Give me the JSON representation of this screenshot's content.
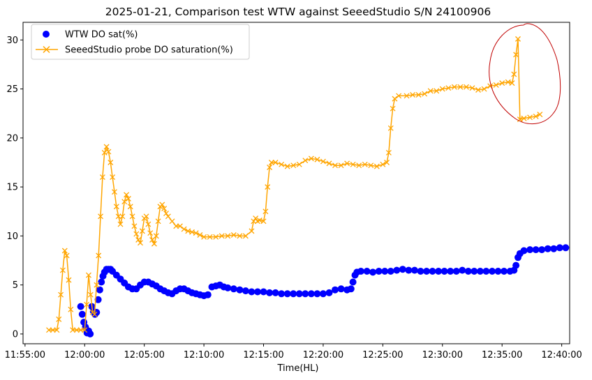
{
  "chart_data": {
    "type": "line",
    "title": "2025-01-21, Comparison test WTW against SeeedStudio S/N 24100906",
    "xlabel": "Time(HL)",
    "ylabel": "",
    "xlim": [
      "11:54:50",
      "12:40:40"
    ],
    "ylim": [
      -1.0,
      31.8
    ],
    "x_ticks": [
      "11:55:00",
      "12:00:00",
      "12:05:00",
      "12:10:00",
      "12:15:00",
      "12:20:00",
      "12:25:00",
      "12:30:00",
      "12:35:00",
      "12:40:00"
    ],
    "y_ticks": [
      0,
      5,
      10,
      15,
      20,
      25,
      30
    ],
    "grid": false,
    "legend_position": "top-left",
    "series": [
      {
        "name": "WTW DO sat(%)",
        "marker": "circle",
        "color": "#0000ff",
        "points": [
          [
            "11:59:40",
            2.8
          ],
          [
            "11:59:48",
            2.0
          ],
          [
            "11:59:56",
            1.2
          ],
          [
            "12:00:04",
            0.7
          ],
          [
            "12:00:12",
            0.1
          ],
          [
            "12:00:20",
            0.3
          ],
          [
            "12:00:28",
            0.0
          ],
          [
            "12:00:36",
            2.8
          ],
          [
            "12:00:44",
            2.3
          ],
          [
            "12:00:52",
            2.0
          ],
          [
            "12:01:00",
            2.2
          ],
          [
            "12:01:08",
            3.5
          ],
          [
            "12:01:16",
            4.5
          ],
          [
            "12:01:24",
            5.3
          ],
          [
            "12:01:32",
            5.9
          ],
          [
            "12:01:40",
            6.3
          ],
          [
            "12:01:50",
            6.6
          ],
          [
            "12:02:00",
            6.6
          ],
          [
            "12:02:10",
            6.6
          ],
          [
            "12:02:20",
            6.4
          ],
          [
            "12:02:40",
            6.0
          ],
          [
            "12:03:00",
            5.6
          ],
          [
            "12:03:20",
            5.2
          ],
          [
            "12:03:40",
            4.8
          ],
          [
            "12:04:00",
            4.6
          ],
          [
            "12:04:20",
            4.6
          ],
          [
            "12:04:40",
            5.0
          ],
          [
            "12:05:00",
            5.3
          ],
          [
            "12:05:20",
            5.3
          ],
          [
            "12:05:40",
            5.1
          ],
          [
            "12:06:00",
            4.9
          ],
          [
            "12:06:20",
            4.6
          ],
          [
            "12:06:40",
            4.4
          ],
          [
            "12:07:00",
            4.2
          ],
          [
            "12:07:20",
            4.1
          ],
          [
            "12:07:40",
            4.4
          ],
          [
            "12:08:00",
            4.6
          ],
          [
            "12:08:20",
            4.6
          ],
          [
            "12:08:40",
            4.4
          ],
          [
            "12:09:00",
            4.2
          ],
          [
            "12:09:20",
            4.1
          ],
          [
            "12:09:40",
            4.0
          ],
          [
            "12:10:00",
            3.9
          ],
          [
            "12:10:20",
            4.0
          ],
          [
            "12:10:40",
            4.8
          ],
          [
            "12:11:00",
            4.9
          ],
          [
            "12:11:20",
            5.0
          ],
          [
            "12:11:40",
            4.8
          ],
          [
            "12:12:00",
            4.7
          ],
          [
            "12:12:30",
            4.6
          ],
          [
            "12:13:00",
            4.5
          ],
          [
            "12:13:30",
            4.4
          ],
          [
            "12:14:00",
            4.3
          ],
          [
            "12:14:30",
            4.3
          ],
          [
            "12:15:00",
            4.3
          ],
          [
            "12:15:30",
            4.2
          ],
          [
            "12:16:00",
            4.2
          ],
          [
            "12:16:30",
            4.1
          ],
          [
            "12:17:00",
            4.1
          ],
          [
            "12:17:30",
            4.1
          ],
          [
            "12:18:00",
            4.1
          ],
          [
            "12:18:30",
            4.1
          ],
          [
            "12:19:00",
            4.1
          ],
          [
            "12:19:30",
            4.1
          ],
          [
            "12:20:00",
            4.1
          ],
          [
            "12:20:30",
            4.2
          ],
          [
            "12:21:00",
            4.5
          ],
          [
            "12:21:30",
            4.6
          ],
          [
            "12:22:00",
            4.5
          ],
          [
            "12:22:20",
            4.6
          ],
          [
            "12:22:30",
            5.3
          ],
          [
            "12:22:40",
            6.0
          ],
          [
            "12:22:50",
            6.3
          ],
          [
            "12:23:10",
            6.4
          ],
          [
            "12:23:40",
            6.4
          ],
          [
            "12:24:10",
            6.3
          ],
          [
            "12:24:40",
            6.4
          ],
          [
            "12:25:10",
            6.4
          ],
          [
            "12:25:40",
            6.4
          ],
          [
            "12:26:10",
            6.5
          ],
          [
            "12:26:40",
            6.6
          ],
          [
            "12:27:10",
            6.5
          ],
          [
            "12:27:40",
            6.5
          ],
          [
            "12:28:10",
            6.4
          ],
          [
            "12:28:40",
            6.4
          ],
          [
            "12:29:10",
            6.4
          ],
          [
            "12:29:40",
            6.4
          ],
          [
            "12:30:10",
            6.4
          ],
          [
            "12:30:40",
            6.4
          ],
          [
            "12:31:10",
            6.4
          ],
          [
            "12:31:40",
            6.5
          ],
          [
            "12:32:10",
            6.4
          ],
          [
            "12:32:40",
            6.4
          ],
          [
            "12:33:10",
            6.4
          ],
          [
            "12:33:40",
            6.4
          ],
          [
            "12:34:10",
            6.4
          ],
          [
            "12:34:40",
            6.4
          ],
          [
            "12:35:10",
            6.4
          ],
          [
            "12:35:40",
            6.4
          ],
          [
            "12:36:00",
            6.5
          ],
          [
            "12:36:10",
            7.0
          ],
          [
            "12:36:20",
            7.8
          ],
          [
            "12:36:30",
            8.2
          ],
          [
            "12:36:50",
            8.5
          ],
          [
            "12:37:20",
            8.6
          ],
          [
            "12:37:50",
            8.6
          ],
          [
            "12:38:20",
            8.6
          ],
          [
            "12:38:50",
            8.7
          ],
          [
            "12:39:20",
            8.7
          ],
          [
            "12:39:50",
            8.8
          ],
          [
            "12:40:20",
            8.8
          ]
        ]
      },
      {
        "name": "SeeedStudio probe DO saturation(%)",
        "marker": "x",
        "color": "#ffa500",
        "points": [
          [
            "11:57:00",
            0.4
          ],
          [
            "11:57:20",
            0.4
          ],
          [
            "11:57:40",
            0.4
          ],
          [
            "11:57:50",
            1.5
          ],
          [
            "11:58:00",
            4.0
          ],
          [
            "11:58:10",
            6.5
          ],
          [
            "11:58:20",
            8.5
          ],
          [
            "11:58:30",
            8.0
          ],
          [
            "11:58:40",
            5.5
          ],
          [
            "11:58:50",
            2.5
          ],
          [
            "11:59:00",
            0.4
          ],
          [
            "11:59:20",
            0.4
          ],
          [
            "11:59:40",
            0.4
          ],
          [
            "12:00:00",
            0.4
          ],
          [
            "12:00:10",
            3.0
          ],
          [
            "12:00:20",
            6.0
          ],
          [
            "12:00:30",
            4.0
          ],
          [
            "12:00:40",
            2.2
          ],
          [
            "12:00:50",
            2.0
          ],
          [
            "12:01:00",
            5.0
          ],
          [
            "12:01:10",
            8.0
          ],
          [
            "12:01:20",
            12.0
          ],
          [
            "12:01:30",
            16.0
          ],
          [
            "12:01:40",
            18.5
          ],
          [
            "12:01:50",
            19.1
          ],
          [
            "12:02:00",
            18.6
          ],
          [
            "12:02:10",
            17.5
          ],
          [
            "12:02:20",
            16.0
          ],
          [
            "12:02:30",
            14.5
          ],
          [
            "12:02:40",
            13.0
          ],
          [
            "12:02:50",
            12.0
          ],
          [
            "12:03:00",
            11.2
          ],
          [
            "12:03:10",
            12.0
          ],
          [
            "12:03:20",
            13.5
          ],
          [
            "12:03:30",
            14.2
          ],
          [
            "12:03:40",
            13.8
          ],
          [
            "12:03:50",
            13.0
          ],
          [
            "12:04:00",
            12.0
          ],
          [
            "12:04:10",
            11.0
          ],
          [
            "12:04:20",
            10.2
          ],
          [
            "12:04:30",
            9.6
          ],
          [
            "12:04:40",
            9.3
          ],
          [
            "12:04:50",
            10.5
          ],
          [
            "12:05:00",
            11.8
          ],
          [
            "12:05:10",
            12.0
          ],
          [
            "12:05:20",
            11.2
          ],
          [
            "12:05:30",
            10.3
          ],
          [
            "12:05:40",
            9.6
          ],
          [
            "12:05:50",
            9.2
          ],
          [
            "12:06:00",
            10.0
          ],
          [
            "12:06:10",
            11.5
          ],
          [
            "12:06:20",
            13.0
          ],
          [
            "12:06:30",
            13.2
          ],
          [
            "12:06:40",
            12.8
          ],
          [
            "12:06:50",
            12.3
          ],
          [
            "12:07:00",
            12.0
          ],
          [
            "12:07:20",
            11.5
          ],
          [
            "12:07:40",
            11.0
          ],
          [
            "12:08:00",
            11.0
          ],
          [
            "12:08:20",
            10.7
          ],
          [
            "12:08:40",
            10.5
          ],
          [
            "12:09:00",
            10.4
          ],
          [
            "12:09:20",
            10.3
          ],
          [
            "12:09:40",
            10.1
          ],
          [
            "12:10:00",
            9.9
          ],
          [
            "12:10:30",
            9.9
          ],
          [
            "12:11:00",
            9.9
          ],
          [
            "12:11:30",
            10.0
          ],
          [
            "12:12:00",
            10.0
          ],
          [
            "12:12:30",
            10.1
          ],
          [
            "12:13:00",
            10.0
          ],
          [
            "12:13:30",
            10.0
          ],
          [
            "12:14:00",
            10.5
          ],
          [
            "12:14:10",
            11.5
          ],
          [
            "12:14:20",
            11.8
          ],
          [
            "12:14:30",
            11.5
          ],
          [
            "12:14:40",
            11.6
          ],
          [
            "12:15:00",
            11.5
          ],
          [
            "12:15:10",
            12.5
          ],
          [
            "12:15:20",
            15.0
          ],
          [
            "12:15:30",
            17.0
          ],
          [
            "12:15:40",
            17.5
          ],
          [
            "12:16:00",
            17.5
          ],
          [
            "12:16:30",
            17.3
          ],
          [
            "12:17:00",
            17.1
          ],
          [
            "12:17:30",
            17.2
          ],
          [
            "12:18:00",
            17.3
          ],
          [
            "12:18:30",
            17.7
          ],
          [
            "12:19:00",
            17.9
          ],
          [
            "12:19:30",
            17.8
          ],
          [
            "12:20:00",
            17.6
          ],
          [
            "12:20:30",
            17.4
          ],
          [
            "12:21:00",
            17.2
          ],
          [
            "12:21:30",
            17.2
          ],
          [
            "12:22:00",
            17.4
          ],
          [
            "12:22:30",
            17.3
          ],
          [
            "12:23:00",
            17.2
          ],
          [
            "12:23:30",
            17.3
          ],
          [
            "12:24:00",
            17.2
          ],
          [
            "12:24:30",
            17.1
          ],
          [
            "12:25:00",
            17.3
          ],
          [
            "12:25:20",
            17.5
          ],
          [
            "12:25:30",
            18.5
          ],
          [
            "12:25:40",
            21.0
          ],
          [
            "12:25:50",
            23.0
          ],
          [
            "12:26:00",
            24.0
          ],
          [
            "12:26:20",
            24.3
          ],
          [
            "12:27:00",
            24.3
          ],
          [
            "12:27:30",
            24.4
          ],
          [
            "12:28:00",
            24.4
          ],
          [
            "12:28:30",
            24.5
          ],
          [
            "12:29:00",
            24.8
          ],
          [
            "12:29:30",
            24.8
          ],
          [
            "12:30:00",
            25.0
          ],
          [
            "12:30:30",
            25.1
          ],
          [
            "12:31:00",
            25.2
          ],
          [
            "12:31:30",
            25.2
          ],
          [
            "12:32:00",
            25.2
          ],
          [
            "12:32:30",
            25.1
          ],
          [
            "12:33:00",
            24.9
          ],
          [
            "12:33:30",
            25.0
          ],
          [
            "12:34:00",
            25.3
          ],
          [
            "12:34:30",
            25.4
          ],
          [
            "12:35:00",
            25.6
          ],
          [
            "12:35:30",
            25.7
          ],
          [
            "12:35:50",
            25.6
          ],
          [
            "12:36:00",
            26.5
          ],
          [
            "12:36:10",
            28.5
          ],
          [
            "12:36:20",
            30.1
          ],
          [
            "12:36:30",
            21.9
          ],
          [
            "12:36:50",
            22.0
          ],
          [
            "12:37:20",
            22.1
          ],
          [
            "12:37:50",
            22.2
          ],
          [
            "12:38:10",
            22.4
          ]
        ]
      }
    ],
    "annotations": [
      {
        "type": "hand-drawn-ellipse",
        "color": "#c00000",
        "around": "SeeedStudio probe DO saturation(%) spike near 12:36"
      }
    ]
  }
}
